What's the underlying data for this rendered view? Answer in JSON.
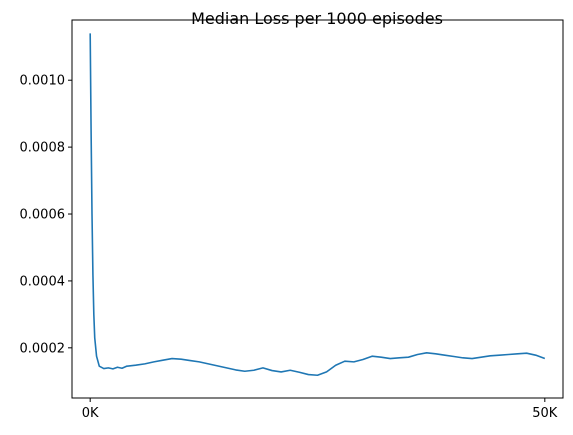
{
  "chart_data": {
    "type": "line",
    "title": "Median Loss per 1000 episodes",
    "xlabel": "",
    "ylabel": "",
    "xlim": [
      -2000,
      52000
    ],
    "ylim": [
      5e-05,
      0.00118
    ],
    "x_ticks": [
      {
        "value": 0,
        "label": "0K"
      },
      {
        "value": 50000,
        "label": "50K"
      }
    ],
    "y_ticks": [
      {
        "value": 0.0002,
        "label": "0.0002"
      },
      {
        "value": 0.0004,
        "label": "0.0004"
      },
      {
        "value": 0.0006,
        "label": "0.0006"
      },
      {
        "value": 0.0008,
        "label": "0.0008"
      },
      {
        "value": 0.001,
        "label": "0.0010"
      }
    ],
    "grid": false,
    "series": [
      {
        "color": "#1f77b4",
        "x": [
          0,
          100,
          200,
          300,
          400,
          500,
          700,
          1000,
          1500,
          2000,
          2500,
          3000,
          3500,
          4000,
          5000,
          6000,
          7000,
          8000,
          9000,
          10000,
          11000,
          12000,
          13000,
          14000,
          15000,
          16000,
          17000,
          18000,
          19000,
          20000,
          21000,
          22000,
          23000,
          24000,
          25000,
          26000,
          27000,
          28000,
          29000,
          30000,
          31000,
          32000,
          33000,
          34000,
          35000,
          36000,
          37000,
          38000,
          39000,
          40000,
          41000,
          42000,
          43000,
          44000,
          45000,
          46000,
          47000,
          48000,
          49000,
          50000
        ],
        "y": [
          0.00114,
          0.00085,
          0.0006,
          0.00042,
          0.0003,
          0.00023,
          0.000175,
          0.000145,
          0.000138,
          0.00014,
          0.000137,
          0.000142,
          0.000139,
          0.000145,
          0.000148,
          0.000152,
          0.000158,
          0.000163,
          0.000168,
          0.000166,
          0.000162,
          0.000158,
          0.000152,
          0.000146,
          0.00014,
          0.000134,
          0.00013,
          0.000133,
          0.00014,
          0.000132,
          0.000128,
          0.000133,
          0.000127,
          0.00012,
          0.000118,
          0.000128,
          0.000148,
          0.00016,
          0.000158,
          0.000165,
          0.000175,
          0.000172,
          0.000168,
          0.00017,
          0.000172,
          0.00018,
          0.000185,
          0.000182,
          0.000178,
          0.000174,
          0.00017,
          0.000168,
          0.000172,
          0.000176,
          0.000178,
          0.00018,
          0.000182,
          0.000184,
          0.000178,
          0.000168
        ]
      }
    ]
  }
}
